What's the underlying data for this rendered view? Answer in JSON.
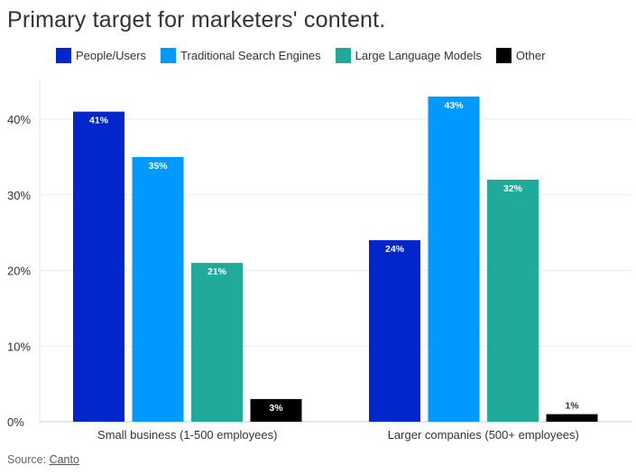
{
  "chart_data": {
    "type": "bar",
    "title": "Primary target for marketers' content.",
    "categories": [
      "Small business (1-500 employees)",
      "Larger companies (500+ employees)"
    ],
    "series": [
      {
        "name": "People/Users",
        "color": "#0026CC",
        "values": [
          41,
          24
        ],
        "labels": [
          "41%",
          "24%"
        ]
      },
      {
        "name": "Traditional Search Engines",
        "color": "#0099FF",
        "values": [
          35,
          43
        ],
        "labels": [
          "35%",
          "43%"
        ]
      },
      {
        "name": "Large Language Models",
        "color": "#20AA99",
        "values": [
          21,
          32
        ],
        "labels": [
          "21%",
          "32%"
        ]
      },
      {
        "name": "Other",
        "color": "#000000",
        "values": [
          3,
          1
        ],
        "labels": [
          "3%",
          "1%"
        ]
      }
    ],
    "yticks": [
      0,
      10,
      20,
      30,
      40
    ],
    "ytick_labels": [
      "0%",
      "10%",
      "20%",
      "30%",
      "40%"
    ],
    "ylim": [
      0,
      45
    ],
    "xlabel": "",
    "ylabel": "",
    "grid": true,
    "legend_position": "top"
  },
  "source": {
    "prefix": "Source: ",
    "link_text": "Canto"
  }
}
